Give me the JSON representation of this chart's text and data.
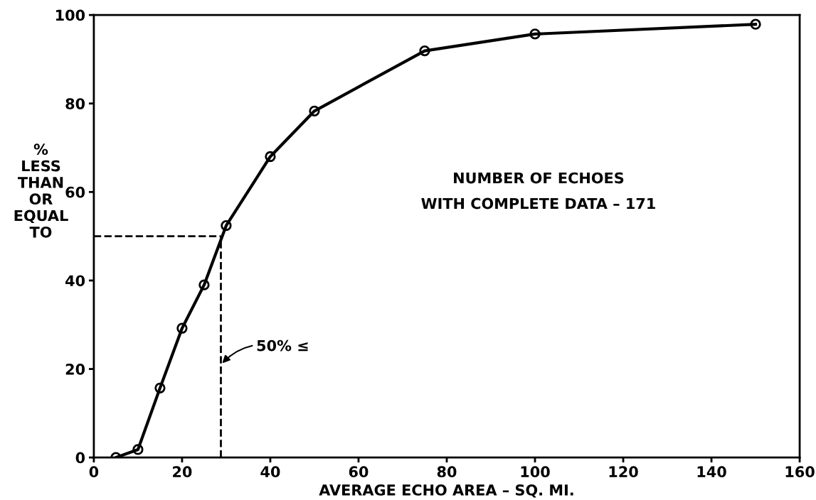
{
  "chart_data": {
    "type": "line",
    "xlabel": "AVERAGE ECHO AREA – SQ. MI.",
    "ylabel": "%\nLESS\nTHAN\nOR\nEQUAL\nTO",
    "x": [
      5,
      10,
      15,
      20,
      25,
      30,
      40,
      50,
      75,
      100,
      150
    ],
    "series": [
      {
        "color": "#000000",
        "values": [
          0,
          1.8,
          15.7,
          29.2,
          39,
          52.4,
          68,
          78.3,
          91.9,
          95.7,
          97.9
        ]
      }
    ],
    "xlim": [
      0,
      160
    ],
    "xticks": [
      0,
      20,
      40,
      60,
      80,
      100,
      120,
      140,
      160
    ],
    "ylim": [
      0,
      100
    ],
    "yticks": [
      0,
      20,
      40,
      60,
      80,
      100
    ],
    "ref_lines": [
      {
        "axis": "y",
        "value": 50,
        "color": "#000000",
        "line_style": "dashed"
      },
      {
        "axis": "x",
        "value": 28.8,
        "color": "#000000",
        "line_style": "dashed"
      }
    ],
    "annotations": [
      {
        "text": "50% ≤",
        "x": 28.8,
        "y": 21
      },
      "NUMBER OF ECHOES\nWITH COMPLETE DATA – 171"
    ],
    "marker": "circle",
    "line_style": "solid",
    "grid": false,
    "legend": false
  }
}
